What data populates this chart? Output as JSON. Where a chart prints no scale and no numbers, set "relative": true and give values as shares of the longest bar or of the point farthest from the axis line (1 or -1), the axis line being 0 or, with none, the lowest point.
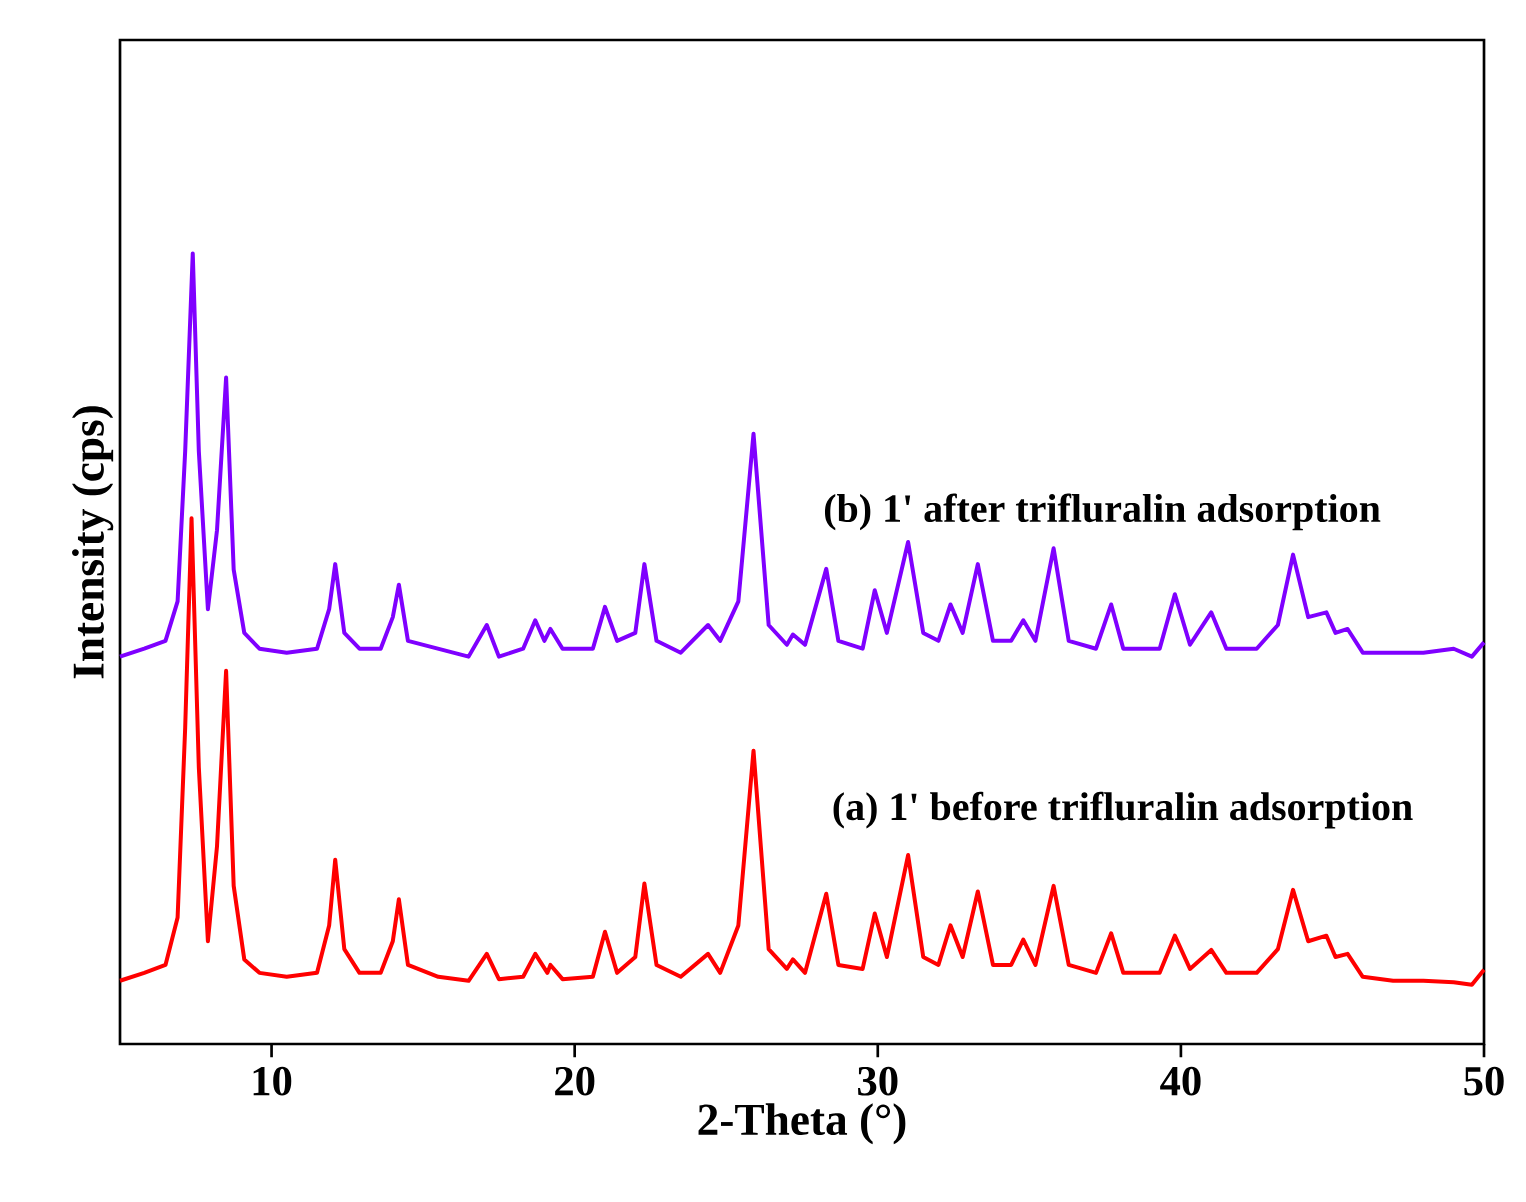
{
  "chart_data": {
    "type": "line",
    "xlabel": "2-Theta (°)",
    "ylabel": "Intensity (cps)",
    "relative": true,
    "xlim": [
      5,
      50
    ],
    "xticks": [
      10,
      20,
      30,
      40,
      50
    ],
    "marker": "none",
    "line_style": "solid",
    "series": [
      {
        "name": "(a) 1' before trifluralin adsorption",
        "color": "#ff0000",
        "x": [
          5,
          5.8,
          6.5,
          6.9,
          7.15,
          7.36,
          7.6,
          7.9,
          8.2,
          8.5,
          8.75,
          9.1,
          9.6,
          10.5,
          11.5,
          11.9,
          12.1,
          12.4,
          12.9,
          13.6,
          14.0,
          14.2,
          14.5,
          15.5,
          16.5,
          17.1,
          17.5,
          18.3,
          18.7,
          19.1,
          19.2,
          19.6,
          20.6,
          21.0,
          21.4,
          22.0,
          22.3,
          22.7,
          23.5,
          24.4,
          24.8,
          25.4,
          25.9,
          26.4,
          27.0,
          27.2,
          27.6,
          28.3,
          28.7,
          29.5,
          29.9,
          30.3,
          31.0,
          31.5,
          32.0,
          32.4,
          32.8,
          33.3,
          33.8,
          34.4,
          34.8,
          35.2,
          35.8,
          36.3,
          37.2,
          37.7,
          38.1,
          39.3,
          39.8,
          40.3,
          41.0,
          41.5,
          42.5,
          43.2,
          43.7,
          44.2,
          44.8,
          45.1,
          45.5,
          46.0,
          47,
          48,
          49,
          49.6,
          50
        ],
        "values": [
          0.08,
          0.09,
          0.1,
          0.16,
          0.4,
          0.665,
          0.35,
          0.13,
          0.25,
          0.472,
          0.2,
          0.107,
          0.09,
          0.085,
          0.09,
          0.15,
          0.233,
          0.12,
          0.09,
          0.09,
          0.13,
          0.183,
          0.1,
          0.085,
          0.08,
          0.114,
          0.082,
          0.085,
          0.114,
          0.09,
          0.1,
          0.082,
          0.085,
          0.142,
          0.09,
          0.11,
          0.203,
          0.1,
          0.085,
          0.114,
          0.09,
          0.15,
          0.371,
          0.12,
          0.095,
          0.107,
          0.09,
          0.19,
          0.1,
          0.095,
          0.165,
          0.11,
          0.239,
          0.11,
          0.1,
          0.15,
          0.11,
          0.193,
          0.1,
          0.1,
          0.132,
          0.1,
          0.2,
          0.1,
          0.09,
          0.14,
          0.09,
          0.09,
          0.137,
          0.095,
          0.119,
          0.09,
          0.09,
          0.12,
          0.195,
          0.13,
          0.137,
          0.11,
          0.114,
          0.085,
          0.08,
          0.08,
          0.078,
          0.075,
          0.094
        ]
      },
      {
        "name": "(b) 1' after trifluralin adsorption",
        "color": "#7f00ff",
        "x": [
          5,
          5.8,
          6.5,
          6.9,
          7.15,
          7.4,
          7.6,
          7.9,
          8.2,
          8.5,
          8.75,
          9.1,
          9.6,
          10.5,
          11.5,
          11.9,
          12.1,
          12.4,
          12.9,
          13.6,
          14.0,
          14.2,
          14.5,
          15.5,
          16.5,
          17.1,
          17.5,
          18.3,
          18.7,
          19.0,
          19.2,
          19.6,
          20.6,
          21.0,
          21.4,
          22.0,
          22.3,
          22.7,
          23.5,
          24.4,
          24.8,
          25.4,
          25.9,
          26.4,
          27.0,
          27.2,
          27.6,
          28.3,
          28.7,
          29.5,
          29.9,
          30.3,
          31.0,
          31.5,
          32.0,
          32.4,
          32.8,
          33.3,
          33.8,
          34.4,
          34.8,
          35.2,
          35.8,
          36.3,
          37.2,
          37.7,
          38.1,
          39.3,
          39.8,
          40.3,
          41.0,
          41.5,
          42.5,
          43.2,
          43.7,
          44.2,
          44.8,
          45.1,
          45.5,
          46.0,
          47,
          48,
          49,
          49.6,
          50
        ],
        "values": [
          0.49,
          0.5,
          0.51,
          0.56,
          0.75,
          1.0,
          0.75,
          0.55,
          0.65,
          0.843,
          0.6,
          0.52,
          0.5,
          0.495,
          0.5,
          0.55,
          0.607,
          0.52,
          0.5,
          0.5,
          0.54,
          0.581,
          0.51,
          0.5,
          0.49,
          0.53,
          0.49,
          0.5,
          0.536,
          0.51,
          0.525,
          0.5,
          0.5,
          0.553,
          0.51,
          0.52,
          0.607,
          0.51,
          0.495,
          0.53,
          0.51,
          0.56,
          0.772,
          0.53,
          0.505,
          0.518,
          0.505,
          0.601,
          0.51,
          0.5,
          0.574,
          0.52,
          0.635,
          0.52,
          0.51,
          0.556,
          0.52,
          0.607,
          0.51,
          0.51,
          0.536,
          0.51,
          0.627,
          0.51,
          0.5,
          0.556,
          0.5,
          0.5,
          0.569,
          0.505,
          0.546,
          0.5,
          0.5,
          0.53,
          0.619,
          0.54,
          0.546,
          0.52,
          0.525,
          0.495,
          0.495,
          0.495,
          0.5,
          0.49,
          0.508
        ]
      }
    ]
  }
}
